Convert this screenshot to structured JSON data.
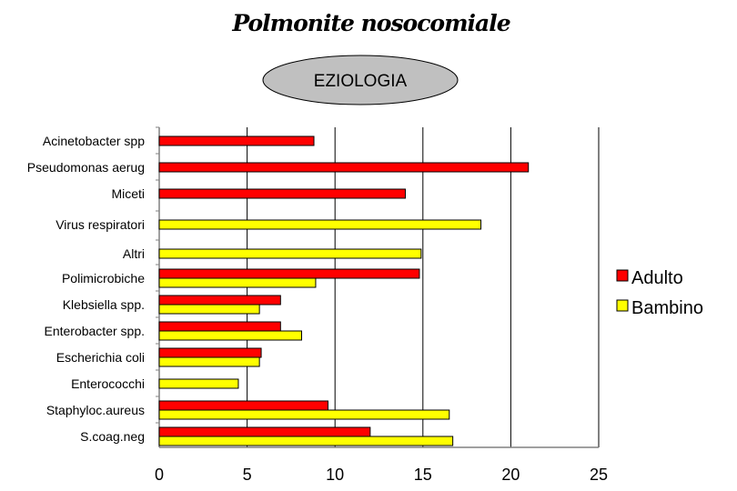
{
  "chart_data": {
    "type": "bar",
    "orientation": "horizontal",
    "title": "Polmonite nosocomiale",
    "subtitle": "EZIOLOGIA",
    "categories": [
      "Acinetobacter spp",
      "Pseudomonas aerug",
      "Miceti",
      "Virus respiratori",
      "Altri",
      "Polimicrobiche",
      "Klebsiella spp.",
      "Enterobacter spp.",
      "Escherichia coli",
      "Enterococchi",
      "Staphyloc.aureus",
      "S.coag.neg"
    ],
    "series": [
      {
        "name": "Adulto",
        "color": "#ff0000",
        "values": [
          8.8,
          21,
          14,
          null,
          null,
          14.8,
          6.9,
          6.9,
          5.8,
          null,
          9.6,
          12
        ]
      },
      {
        "name": "Bambino",
        "color": "#ffff00",
        "values": [
          null,
          null,
          null,
          18.3,
          14.9,
          8.9,
          5.7,
          8.1,
          5.7,
          4.5,
          16.5,
          16.7
        ]
      }
    ],
    "xlim": [
      0,
      25
    ],
    "xticks": [
      0,
      5,
      10,
      15,
      20,
      25
    ],
    "xlabel": "",
    "ylabel": "",
    "grid": "vertical",
    "legend": "right"
  }
}
